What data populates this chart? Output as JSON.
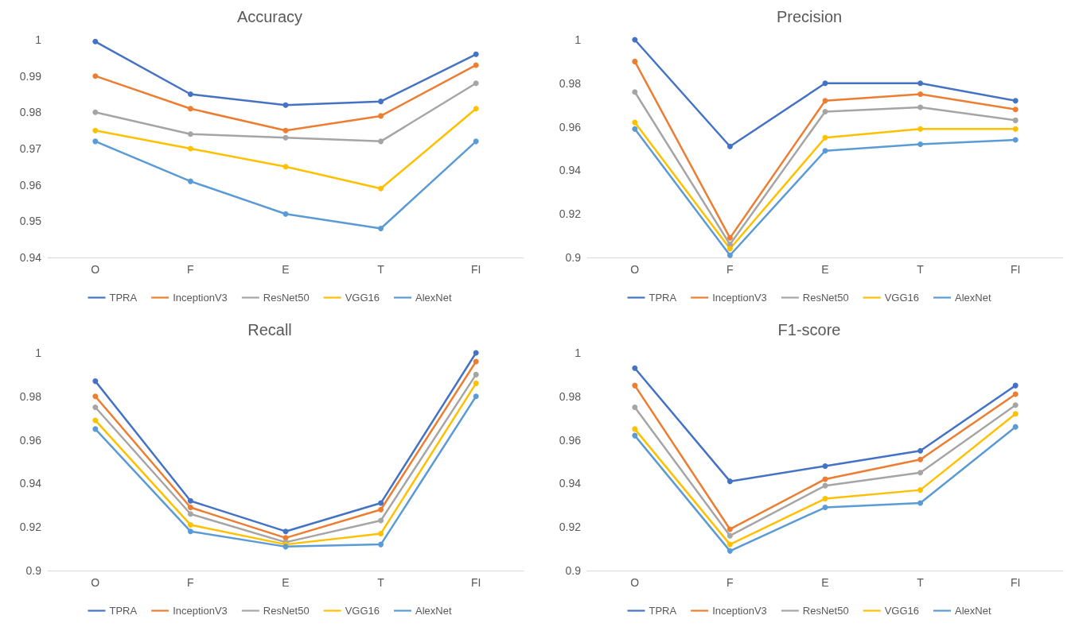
{
  "chart_data": [
    {
      "type": "line",
      "title": "Accuracy",
      "categories": [
        "O",
        "F",
        "E",
        "T",
        "FI"
      ],
      "ylim": [
        0.94,
        1
      ],
      "yticks": [
        0.94,
        0.95,
        0.96,
        0.97,
        0.98,
        0.99,
        1
      ],
      "grid": false,
      "legend": "bottom",
      "marker": "circle",
      "line_style": "solid",
      "series": [
        {
          "name": "TPRA",
          "color": "#4472c4",
          "values": [
            0.9995,
            0.985,
            0.982,
            0.983,
            0.996
          ]
        },
        {
          "name": "InceptionV3",
          "color": "#ed7d31",
          "values": [
            0.99,
            0.981,
            0.975,
            0.979,
            0.993
          ]
        },
        {
          "name": "ResNet50",
          "color": "#a5a5a5",
          "values": [
            0.98,
            0.974,
            0.973,
            0.972,
            0.988
          ]
        },
        {
          "name": "VGG16",
          "color": "#ffc000",
          "values": [
            0.975,
            0.97,
            0.965,
            0.959,
            0.981
          ]
        },
        {
          "name": "AlexNet",
          "color": "#5b9bd5",
          "values": [
            0.972,
            0.961,
            0.952,
            0.948,
            0.972
          ]
        }
      ]
    },
    {
      "type": "line",
      "title": "Precision",
      "categories": [
        "O",
        "F",
        "E",
        "T",
        "FI"
      ],
      "ylim": [
        0.9,
        1
      ],
      "yticks": [
        0.9,
        0.92,
        0.94,
        0.96,
        0.98,
        1
      ],
      "grid": false,
      "legend": "bottom",
      "marker": "circle",
      "line_style": "solid",
      "series": [
        {
          "name": "TPRA",
          "color": "#4472c4",
          "values": [
            1.0,
            0.951,
            0.98,
            0.98,
            0.972
          ]
        },
        {
          "name": "InceptionV3",
          "color": "#ed7d31",
          "values": [
            0.99,
            0.909,
            0.972,
            0.975,
            0.968
          ]
        },
        {
          "name": "ResNet50",
          "color": "#a5a5a5",
          "values": [
            0.976,
            0.906,
            0.967,
            0.969,
            0.963
          ]
        },
        {
          "name": "VGG16",
          "color": "#ffc000",
          "values": [
            0.962,
            0.904,
            0.955,
            0.959,
            0.959
          ]
        },
        {
          "name": "AlexNet",
          "color": "#5b9bd5",
          "values": [
            0.959,
            0.901,
            0.949,
            0.952,
            0.954
          ]
        }
      ]
    },
    {
      "type": "line",
      "title": "Recall",
      "categories": [
        "O",
        "F",
        "E",
        "T",
        "FI"
      ],
      "ylim": [
        0.9,
        1
      ],
      "yticks": [
        0.9,
        0.92,
        0.94,
        0.96,
        0.98,
        1
      ],
      "grid": false,
      "legend": "bottom",
      "marker": "circle",
      "line_style": "solid",
      "series": [
        {
          "name": "TPRA",
          "color": "#4472c4",
          "values": [
            0.987,
            0.932,
            0.918,
            0.931,
            1.0
          ]
        },
        {
          "name": "InceptionV3",
          "color": "#ed7d31",
          "values": [
            0.98,
            0.929,
            0.915,
            0.928,
            0.996
          ]
        },
        {
          "name": "ResNet50",
          "color": "#a5a5a5",
          "values": [
            0.975,
            0.926,
            0.913,
            0.923,
            0.99
          ]
        },
        {
          "name": "VGG16",
          "color": "#ffc000",
          "values": [
            0.969,
            0.921,
            0.912,
            0.917,
            0.986
          ]
        },
        {
          "name": "AlexNet",
          "color": "#5b9bd5",
          "values": [
            0.965,
            0.918,
            0.911,
            0.912,
            0.98
          ]
        }
      ]
    },
    {
      "type": "line",
      "title": "F1-score",
      "categories": [
        "O",
        "F",
        "E",
        "T",
        "FI"
      ],
      "ylim": [
        0.9,
        1
      ],
      "yticks": [
        0.9,
        0.92,
        0.94,
        0.96,
        0.98,
        1
      ],
      "grid": false,
      "legend": "bottom",
      "marker": "circle",
      "line_style": "solid",
      "series": [
        {
          "name": "TPRA",
          "color": "#4472c4",
          "values": [
            0.993,
            0.941,
            0.948,
            0.955,
            0.985
          ]
        },
        {
          "name": "InceptionV3",
          "color": "#ed7d31",
          "values": [
            0.985,
            0.919,
            0.942,
            0.951,
            0.981
          ]
        },
        {
          "name": "ResNet50",
          "color": "#a5a5a5",
          "values": [
            0.975,
            0.916,
            0.939,
            0.945,
            0.976
          ]
        },
        {
          "name": "VGG16",
          "color": "#ffc000",
          "values": [
            0.965,
            0.912,
            0.933,
            0.937,
            0.972
          ]
        },
        {
          "name": "AlexNet",
          "color": "#5b9bd5",
          "values": [
            0.962,
            0.909,
            0.929,
            0.931,
            0.966
          ]
        }
      ]
    }
  ]
}
